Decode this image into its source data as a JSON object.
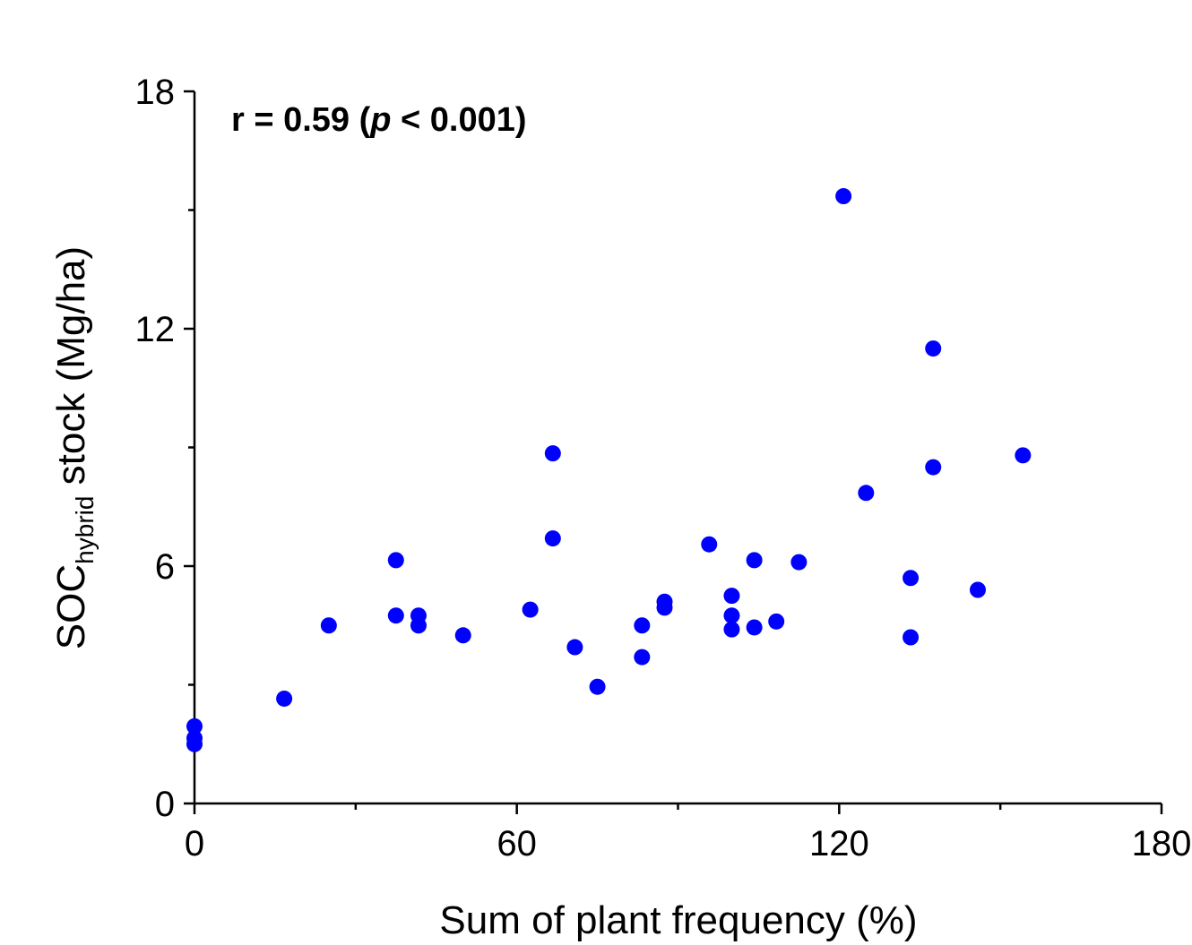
{
  "chart_data": {
    "type": "scatter",
    "title": "",
    "annotation": {
      "prefix": "r = 0.59 (",
      "italic": "p",
      "suffix": " < 0.001)"
    },
    "xlabel": "Sum of plant frequency (%)",
    "ylabel": {
      "main": "SOC",
      "subscript": "hybrid",
      "rest": " stock (Mg/ha)"
    },
    "xlim": [
      0,
      180
    ],
    "ylim": [
      0,
      18
    ],
    "xticks": [
      "0",
      "60",
      "120",
      "180"
    ],
    "yticks": [
      "0",
      "6",
      "12",
      "18"
    ],
    "grid": false,
    "marker_color": "#0000ff",
    "points": [
      {
        "x": 0,
        "y": 1.95
      },
      {
        "x": 0,
        "y": 1.65
      },
      {
        "x": 0,
        "y": 1.5
      },
      {
        "x": 16.7,
        "y": 2.65
      },
      {
        "x": 25,
        "y": 4.5
      },
      {
        "x": 37.5,
        "y": 6.15
      },
      {
        "x": 37.5,
        "y": 4.75
      },
      {
        "x": 41.7,
        "y": 4.75
      },
      {
        "x": 41.7,
        "y": 4.5
      },
      {
        "x": 50,
        "y": 4.25
      },
      {
        "x": 62.5,
        "y": 4.9
      },
      {
        "x": 66.7,
        "y": 8.85
      },
      {
        "x": 66.7,
        "y": 6.7
      },
      {
        "x": 70.8,
        "y": 3.95
      },
      {
        "x": 75,
        "y": 2.95
      },
      {
        "x": 83.3,
        "y": 4.5
      },
      {
        "x": 83.3,
        "y": 3.7
      },
      {
        "x": 87.5,
        "y": 5.1
      },
      {
        "x": 87.5,
        "y": 4.95
      },
      {
        "x": 95.8,
        "y": 6.55
      },
      {
        "x": 100,
        "y": 5.25
      },
      {
        "x": 100,
        "y": 4.75
      },
      {
        "x": 100,
        "y": 4.4
      },
      {
        "x": 104.2,
        "y": 6.15
      },
      {
        "x": 104.2,
        "y": 4.45
      },
      {
        "x": 108.3,
        "y": 4.6
      },
      {
        "x": 112.5,
        "y": 6.1
      },
      {
        "x": 120.8,
        "y": 15.35
      },
      {
        "x": 125,
        "y": 7.85
      },
      {
        "x": 133.3,
        "y": 5.7
      },
      {
        "x": 133.3,
        "y": 4.2
      },
      {
        "x": 137.5,
        "y": 11.5
      },
      {
        "x": 137.5,
        "y": 8.5
      },
      {
        "x": 145.8,
        "y": 5.4
      },
      {
        "x": 154.2,
        "y": 8.8
      }
    ]
  }
}
